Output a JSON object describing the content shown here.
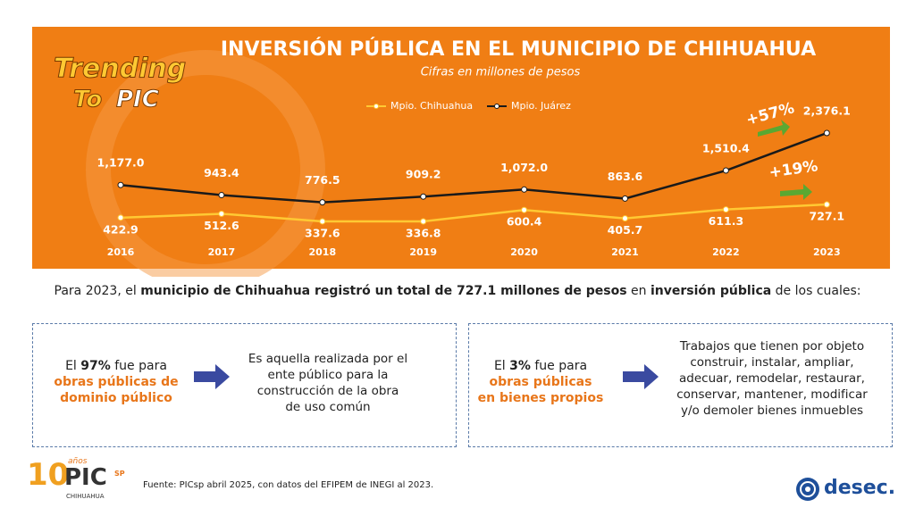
{
  "chart_data": {
    "type": "line",
    "title": "INVERSIÓN PÚBLICA EN EL MUNICIPIO DE CHIHUAHUA",
    "subtitle": "Cifras en millones de pesos",
    "categories": [
      "2016",
      "2017",
      "2018",
      "2019",
      "2020",
      "2021",
      "2022",
      "2023"
    ],
    "series": [
      {
        "name": "Mpio. Chihuahua",
        "color": "#ffc933",
        "values": [
          422.9,
          512.6,
          337.6,
          336.8,
          600.4,
          405.7,
          611.3,
          727.1
        ],
        "value_labels": [
          "422.9",
          "512.6",
          "337.6",
          "336.8",
          "600.4",
          "405.7",
          "611.3",
          "727.1"
        ]
      },
      {
        "name": "Mpio. Juárez",
        "color": "#1a1a1a",
        "values": [
          1177.0,
          943.4,
          776.5,
          909.2,
          1072.0,
          863.6,
          1510.4,
          2376.1
        ],
        "value_labels": [
          "1,177.0",
          "943.4",
          "776.5",
          "909.2",
          "1,072.0",
          "863.6",
          "1,510.4",
          "2,376.1"
        ]
      }
    ],
    "annotations": [
      "+57%",
      "+19%"
    ],
    "legend": "top"
  },
  "page": {
    "brand": [
      "Trending",
      "To",
      "PIC"
    ],
    "summary": [
      "Para 2023, el ",
      "municipio de Chihuahua registró un total de 727.1 millones de pesos",
      " en ",
      "inversión pública",
      " de los cuales:"
    ],
    "box1": {
      "left": [
        "El ",
        "97%",
        " fue para",
        "obras públicas de",
        "dominio público"
      ],
      "right": [
        "Es aquella realizada por el",
        "ente público para la",
        "construcción de la obra",
        "de uso común"
      ]
    },
    "box2": {
      "left": [
        "El ",
        "3%",
        " fue para",
        "obras públicas",
        "en bienes propios"
      ],
      "right": [
        "Trabajos que tienen por objeto",
        "construir, instalar, ampliar,",
        "adecuar, remodelar, restaurar,",
        "conservar, mantener, modificar",
        "y/o demoler bienes inmuebles"
      ]
    },
    "source": "Fuente:  PICsp abril 2025, con datos del EFIPEM de INEGI al 2023.",
    "logo_left": [
      "10",
      "años",
      "PIC",
      "SP",
      "CHIHUAHUA"
    ],
    "logo_right": "desec."
  }
}
